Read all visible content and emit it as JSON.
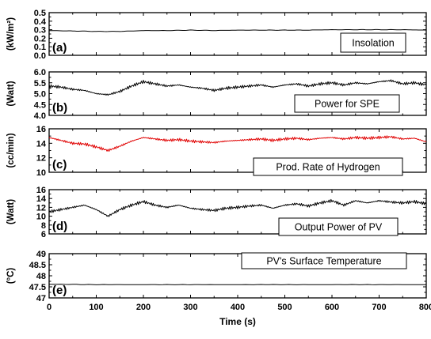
{
  "chart_data": [
    {
      "type": "line",
      "panel_label": "(a)",
      "ylabel": "(kW/m²)",
      "ylim": [
        0.0,
        0.5
      ],
      "yticks": [
        "0.0",
        "0.1",
        "0.2",
        "0.3",
        "0.4",
        "0.5"
      ],
      "xlim": [
        0,
        800
      ],
      "legend": "Insolation",
      "legend_position": "right",
      "color": "#000000",
      "x": [
        0,
        50,
        100,
        150,
        200,
        250,
        300,
        350,
        400,
        450,
        500,
        550,
        600,
        650,
        700,
        750,
        800
      ],
      "y": [
        0.29,
        0.285,
        0.28,
        0.28,
        0.29,
        0.29,
        0.295,
        0.29,
        0.295,
        0.295,
        0.295,
        0.295,
        0.3,
        0.3,
        0.3,
        0.3,
        0.295
      ]
    },
    {
      "type": "line",
      "panel_label": "(b)",
      "ylabel": "(Watt)",
      "ylim": [
        4.0,
        6.0
      ],
      "yticks": [
        "4.0",
        "4.5",
        "5.0",
        "5.5",
        "6.0"
      ],
      "xlim": [
        0,
        800
      ],
      "legend": "Power for SPE",
      "legend_position": "right",
      "color": "#000000",
      "x": [
        0,
        25,
        50,
        75,
        100,
        125,
        150,
        175,
        200,
        225,
        250,
        275,
        300,
        325,
        350,
        375,
        400,
        425,
        450,
        475,
        500,
        525,
        550,
        575,
        600,
        625,
        650,
        675,
        700,
        725,
        750,
        775,
        800
      ],
      "y": [
        5.35,
        5.3,
        5.2,
        5.15,
        5.0,
        4.95,
        5.1,
        5.35,
        5.55,
        5.45,
        5.35,
        5.4,
        5.3,
        5.25,
        5.15,
        5.25,
        5.3,
        5.35,
        5.4,
        5.3,
        5.4,
        5.45,
        5.35,
        5.45,
        5.5,
        5.4,
        5.5,
        5.45,
        5.55,
        5.6,
        5.45,
        5.5,
        5.4
      ]
    },
    {
      "type": "line",
      "panel_label": "(c)",
      "ylabel": "(cc/min)",
      "ylim": [
        10,
        16
      ],
      "yticks": [
        "10",
        "12",
        "14",
        "16"
      ],
      "xlim": [
        0,
        800
      ],
      "legend": "Prod. Rate of Hydrogen",
      "legend_position": "right",
      "color": "#e00000",
      "x": [
        0,
        25,
        50,
        75,
        100,
        125,
        150,
        175,
        200,
        225,
        250,
        275,
        300,
        325,
        350,
        375,
        400,
        425,
        450,
        475,
        500,
        525,
        550,
        575,
        600,
        625,
        650,
        675,
        700,
        725,
        750,
        775,
        800
      ],
      "y": [
        14.8,
        14.4,
        14.0,
        13.9,
        13.5,
        13.0,
        13.6,
        14.3,
        14.8,
        14.6,
        14.4,
        14.5,
        14.3,
        14.2,
        14.1,
        14.3,
        14.4,
        14.5,
        14.6,
        14.4,
        14.6,
        14.7,
        14.5,
        14.7,
        14.8,
        14.6,
        14.8,
        14.7,
        14.8,
        14.9,
        14.6,
        14.7,
        14.2
      ]
    },
    {
      "type": "line",
      "panel_label": "(d)",
      "ylabel": "(Watt)",
      "ylim": [
        6,
        16
      ],
      "yticks": [
        "6",
        "8",
        "10",
        "12",
        "14",
        "16"
      ],
      "xlim": [
        0,
        800
      ],
      "legend": "Output Power of PV",
      "legend_position": "right",
      "color": "#000000",
      "x": [
        0,
        25,
        50,
        75,
        100,
        125,
        150,
        175,
        200,
        225,
        250,
        275,
        300,
        325,
        350,
        375,
        400,
        425,
        450,
        475,
        500,
        525,
        550,
        575,
        600,
        625,
        650,
        675,
        700,
        725,
        750,
        775,
        800
      ],
      "y": [
        11.0,
        11.5,
        12.0,
        12.5,
        11.5,
        10.0,
        11.5,
        12.5,
        13.3,
        12.5,
        12.0,
        12.5,
        11.8,
        11.5,
        11.3,
        11.8,
        12.0,
        12.3,
        12.5,
        11.8,
        12.5,
        12.8,
        12.3,
        13.0,
        13.5,
        12.5,
        13.5,
        13.0,
        13.5,
        13.2,
        13.0,
        13.3,
        12.8
      ]
    },
    {
      "type": "line",
      "panel_label": "(e)",
      "ylabel": "(°C)",
      "ylim": [
        47,
        49
      ],
      "yticks": [
        "47",
        "47.5",
        "48",
        "48.5",
        "49"
      ],
      "xlim": [
        0,
        800
      ],
      "xticks": [
        "0",
        "100",
        "200",
        "300",
        "400",
        "500",
        "600",
        "700",
        "800"
      ],
      "xlabel": "Time (s)",
      "legend": "PV's Surface Temperature",
      "legend_position": "top-right",
      "color": "#000000",
      "x": [
        0,
        100,
        200,
        300,
        400,
        500,
        600,
        700,
        800
      ],
      "y": [
        47.62,
        47.6,
        47.6,
        47.6,
        47.6,
        47.6,
        47.6,
        47.6,
        47.6
      ]
    }
  ]
}
